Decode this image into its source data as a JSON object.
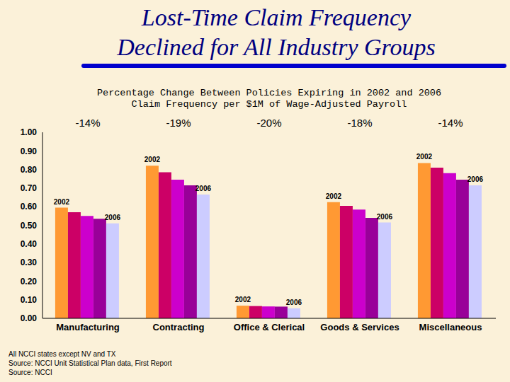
{
  "chart_data": {
    "type": "bar",
    "title": [
      "Lost-Time Claim Frequency",
      "Declined for All Industry Groups"
    ],
    "subtitle": [
      "Percentage Change Between Policies Expiring in 2002 and 2006",
      "Claim Frequency per $1M of Wage-Adjusted Payroll"
    ],
    "categories": [
      "Manufacturing",
      "Contracting",
      "Office & Clerical",
      "Goods & Services",
      "Miscellaneous"
    ],
    "annotations": [
      "-14%",
      "-19%",
      "-20%",
      "-18%",
      "-14%"
    ],
    "series": [
      {
        "name": "2002",
        "color": "#ff9933",
        "values": [
          0.595,
          0.82,
          0.068,
          0.625,
          0.835
        ]
      },
      {
        "color": "#cc0066",
        "values": [
          0.57,
          0.785,
          0.066,
          0.605,
          0.81
        ]
      },
      {
        "color": "#cc00cc",
        "values": [
          0.55,
          0.745,
          0.064,
          0.585,
          0.78
        ]
      },
      {
        "color": "#990099",
        "values": [
          0.535,
          0.715,
          0.063,
          0.54,
          0.745
        ]
      },
      {
        "name": "2006",
        "color": "#ccccff",
        "values": [
          0.51,
          0.665,
          0.054,
          0.515,
          0.715
        ]
      }
    ],
    "ylim": [
      0,
      1
    ],
    "yticks": [
      {
        "value": 0,
        "label": "0.00"
      },
      {
        "value": 0.1,
        "label": "0.10"
      },
      {
        "value": 0.2,
        "label": "0.20"
      },
      {
        "value": 0.3,
        "label": "0.30"
      },
      {
        "value": 0.4,
        "label": "0.40"
      },
      {
        "value": 0.5,
        "label": "0.50"
      },
      {
        "value": 0.6,
        "label": "0.60"
      },
      {
        "value": 0.7,
        "label": "0.70"
      },
      {
        "value": 0.8,
        "label": "0.80"
      },
      {
        "value": 0.9,
        "label": "0.90"
      },
      {
        "value": 1,
        "label": "1.00"
      }
    ],
    "grid": false,
    "footnotes": [
      "All NCCI states except NV and TX",
      "Source: NCCI Unit Statistical Plan data, First Report",
      "Source: NCCI"
    ]
  }
}
